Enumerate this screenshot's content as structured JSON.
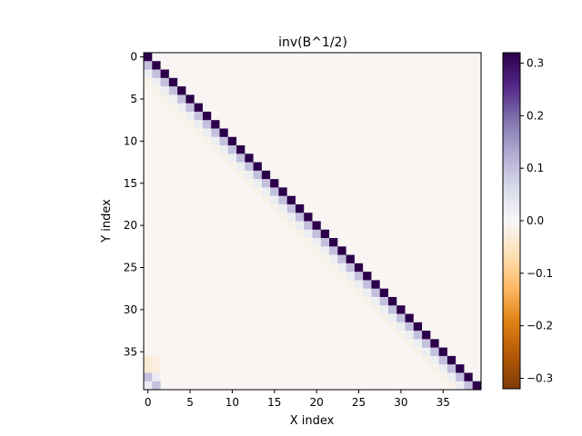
{
  "chart_data": {
    "type": "heatmap",
    "title": "inv(B^1/2)",
    "xlabel": "X index",
    "ylabel": "Y index",
    "size": 40,
    "x_ticks": [
      0,
      5,
      10,
      15,
      20,
      25,
      30,
      35
    ],
    "y_ticks": [
      0,
      5,
      10,
      15,
      20,
      25,
      30,
      35
    ],
    "colormap": "PuOr",
    "vmin": -0.32,
    "vmax": 0.32,
    "colorbar_ticks": [
      0.3,
      0.2,
      0.1,
      0.0,
      -0.1,
      -0.2,
      -0.3
    ],
    "colorbar_tick_labels": [
      "0.3",
      "0.2",
      "0.1",
      "0.0",
      "−0.1",
      "−0.2",
      "−0.3"
    ],
    "background_value": -0.005,
    "structure": {
      "diagonal_value": 0.32,
      "offdiag_1": 0.1,
      "offdiag_2": 0.02,
      "offdiag_3": -0.015,
      "corner_cells": [
        {
          "row": 38,
          "col": 0,
          "value": 0.1
        },
        {
          "row": 39,
          "col": 1,
          "value": 0.1
        },
        {
          "row": 39,
          "col": 0,
          "value": 0.02
        },
        {
          "row": 38,
          "col": 1,
          "value": 0.02
        },
        {
          "row": 36,
          "col": 0,
          "value": -0.03
        },
        {
          "row": 37,
          "col": 0,
          "value": -0.035
        },
        {
          "row": 37,
          "col": 1,
          "value": -0.025
        },
        {
          "row": 36,
          "col": 1,
          "value": -0.02
        }
      ]
    }
  }
}
